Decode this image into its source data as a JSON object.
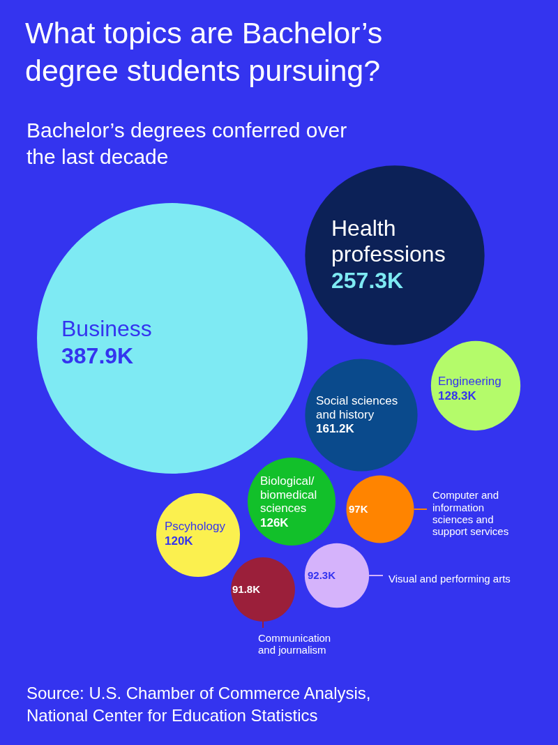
{
  "chart_data": {
    "type": "other",
    "title": "What topics are Bachelor’s degree students pursuing?",
    "subtitle": "Bachelor’s degrees conferred over the last decade",
    "categories": [
      "Business",
      "Health professions",
      "Social sciences and history",
      "Engineering",
      "Biological/ biomedical sciences",
      "Computer and information sciences and support services",
      "Pscyhology",
      "Visual and performing arts",
      "Communication and journalism"
    ],
    "values": [
      387.9,
      257.3,
      161.2,
      128.3,
      126,
      97,
      120,
      92.3,
      91.8
    ],
    "value_labels": [
      "387.9K",
      "257.3K",
      "161.2K",
      "128.3K",
      "126K",
      "97K",
      "120K",
      "92.3K",
      "91.8K"
    ],
    "colors": [
      "#7eeaf3",
      "#0c2157",
      "#0a4a8c",
      "#b4fb6a",
      "#12c02a",
      "#ff8400",
      "#fbf04f",
      "#d5b3fb",
      "#9b1f3a"
    ],
    "annotations": [
      "Source: U.S. Chamber of Commerce Analysis, National Center for Education Statistics"
    ]
  }
}
